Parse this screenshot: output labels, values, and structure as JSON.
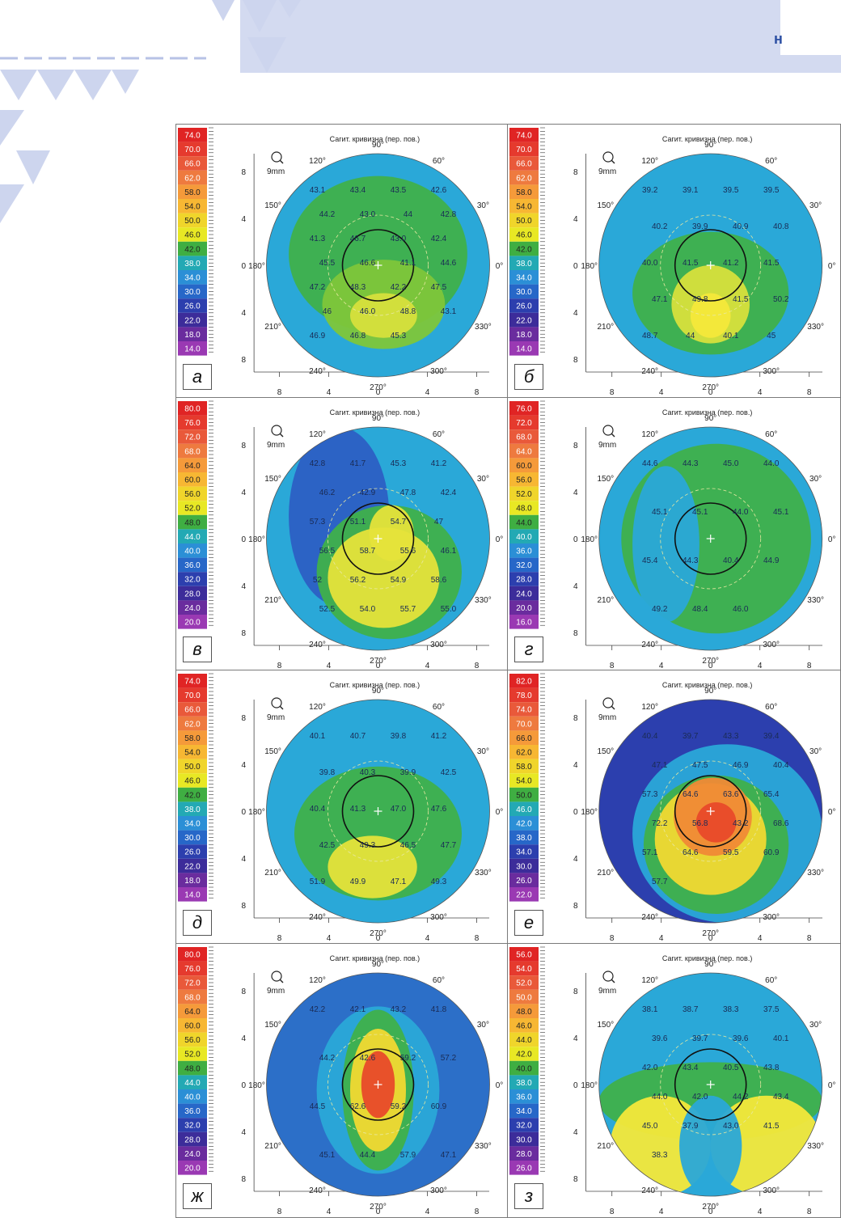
{
  "header": {
    "letter": "н"
  },
  "panels": [
    {
      "caption": "а",
      "title": "Сагит. кривизна (пер. пов.)",
      "zoom": "9mm",
      "scale": [
        "74.0",
        "70.0",
        "66.0",
        "62.0",
        "58.0",
        "54.0",
        "50.0",
        "46.0",
        "42.0",
        "38.0",
        "34.0",
        "30.0",
        "26.0",
        "22.0",
        "18.0",
        "14.0"
      ],
      "values": [
        "43.1",
        "43.4",
        "43.5",
        "42.6",
        "44.2",
        "43.0",
        "44",
        "42.8",
        "41.3",
        "46.7",
        "43.0",
        "42.4",
        "45.5",
        "46.6",
        "41.1",
        "44.6",
        "47.2",
        "48.3",
        "42.2",
        "47.5",
        "46",
        "46.0",
        "48.8",
        "43.1",
        "46.9",
        "46.8",
        "45.3"
      ]
    },
    {
      "caption": "б",
      "title": "Сагит. кривизна (пер. пов.)",
      "zoom": "9mm",
      "scale": [
        "74.0",
        "70.0",
        "66.0",
        "62.0",
        "58.0",
        "54.0",
        "50.0",
        "46.0",
        "42.0",
        "38.0",
        "34.0",
        "30.0",
        "26.0",
        "22.0",
        "18.0",
        "14.0"
      ],
      "values": [
        "39.2",
        "39.1",
        "39.5",
        "39.5",
        "40.2",
        "39.9",
        "40.9",
        "40.8",
        "40.0",
        "41.5",
        "41.2",
        "41.5",
        "47.1",
        "49.8",
        "41.5",
        "50.2",
        "48.7",
        "44",
        "40.1",
        "45"
      ]
    },
    {
      "caption": "в",
      "title": "Сагит. кривизна (пер. пов.)",
      "zoom": "9mm",
      "scale": [
        "80.0",
        "76.0",
        "72.0",
        "68.0",
        "64.0",
        "60.0",
        "56.0",
        "52.0",
        "48.0",
        "44.0",
        "40.0",
        "36.0",
        "32.0",
        "28.0",
        "24.0",
        "20.0"
      ],
      "values": [
        "42.8",
        "41.7",
        "45.3",
        "41.2",
        "46.2",
        "42.9",
        "47.8",
        "42.4",
        "57.3",
        "51.1",
        "54.7",
        "47",
        "56.5",
        "58.7",
        "55.6",
        "46.1",
        "52",
        "56.2",
        "54.9",
        "58.6",
        "52.5",
        "54.0",
        "55.7",
        "55.0"
      ]
    },
    {
      "caption": "г",
      "title": "Сагит. кривизна (пер. пов.)",
      "zoom": "9mm",
      "scale": [
        "76.0",
        "72.0",
        "68.0",
        "64.0",
        "60.0",
        "56.0",
        "52.0",
        "48.0",
        "44.0",
        "40.0",
        "36.0",
        "32.0",
        "28.0",
        "24.0",
        "20.0",
        "16.0"
      ],
      "values": [
        "44.6",
        "44.3",
        "45.0",
        "44.0",
        "45.1",
        "45.1",
        "44.0",
        "45.1",
        "45.4",
        "44.3",
        "40.4",
        "44.9",
        "49.2",
        "48.4",
        "46.0"
      ]
    },
    {
      "caption": "д",
      "title": "Сагит. кривизна (пер. пов.)",
      "zoom": "9mm",
      "scale": [
        "74.0",
        "70.0",
        "66.0",
        "62.0",
        "58.0",
        "54.0",
        "50.0",
        "46.0",
        "42.0",
        "38.0",
        "34.0",
        "30.0",
        "26.0",
        "22.0",
        "18.0",
        "14.0"
      ],
      "values": [
        "40.1",
        "40.7",
        "39.8",
        "41.2",
        "39.8",
        "40.3",
        "39.9",
        "42.5",
        "40.4",
        "41.3",
        "47.0",
        "47.6",
        "42.5",
        "49.3",
        "46.5",
        "47.7",
        "51.9",
        "49.9",
        "47.1",
        "49.3"
      ]
    },
    {
      "caption": "е",
      "title": "Сагит. кривизна (пер. пов.)",
      "zoom": "9mm",
      "scale": [
        "82.0",
        "78.0",
        "74.0",
        "70.0",
        "66.0",
        "62.0",
        "58.0",
        "54.0",
        "50.0",
        "46.0",
        "42.0",
        "38.0",
        "34.0",
        "30.0",
        "26.0",
        "22.0"
      ],
      "values": [
        "40.4",
        "39.7",
        "43.3",
        "39.4",
        "47.1",
        "47.5",
        "46.9",
        "40.4",
        "57.3",
        "64.6",
        "63.6",
        "65.4",
        "72.2",
        "56.8",
        "43.2",
        "68.6",
        "57.1",
        "64.6",
        "59.5",
        "60.9",
        "57.7"
      ]
    },
    {
      "caption": "ж",
      "title": "Сагит. кривизна (пер. пов.)",
      "zoom": "9mm",
      "scale": [
        "80.0",
        "76.0",
        "72.0",
        "68.0",
        "64.0",
        "60.0",
        "56.0",
        "52.0",
        "48.0",
        "44.0",
        "40.0",
        "36.0",
        "32.0",
        "28.0",
        "24.0",
        "20.0"
      ],
      "values": [
        "42.2",
        "42.1",
        "43.2",
        "41.8",
        "44.2",
        "42.6",
        "59.2",
        "57.2",
        "44.5",
        "62.6",
        "59.2",
        "60.9",
        "45.1",
        "44.4",
        "57.9",
        "47.1"
      ]
    },
    {
      "caption": "з",
      "title": "Сагит. кривизна (пер. пов.)",
      "zoom": "9mm",
      "scale": [
        "56.0",
        "54.0",
        "52.0",
        "50.0",
        "48.0",
        "46.0",
        "44.0",
        "42.0",
        "40.0",
        "38.0",
        "36.0",
        "34.0",
        "32.0",
        "30.0",
        "28.0",
        "26.0"
      ],
      "values": [
        "38.1",
        "38.7",
        "38.3",
        "37.5",
        "39.6",
        "39.7",
        "39.6",
        "40.1",
        "42.0",
        "43.4",
        "40.5",
        "43.8",
        "44.0",
        "42.0",
        "44.2",
        "43.4",
        "45.0",
        "37.9",
        "43.0",
        "41.5",
        "38.3"
      ]
    }
  ],
  "axis": {
    "ticks_x": [
      "8",
      "4",
      "0",
      "4",
      "8"
    ],
    "ticks_y": [
      "8",
      "4",
      "0",
      "4",
      "8"
    ],
    "deg": [
      "90°",
      "60°",
      "30°",
      "0°",
      "330°",
      "300°",
      "270°",
      "240°",
      "210°",
      "180°",
      "150°",
      "120°"
    ]
  },
  "colors": {
    "accent": "#2c4fa3",
    "band": "#d3daf0"
  }
}
